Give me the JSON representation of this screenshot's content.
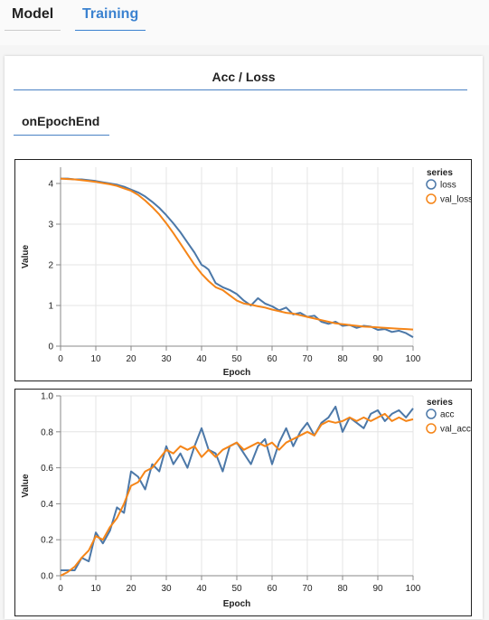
{
  "tabs": [
    {
      "label": "Model",
      "active": false
    },
    {
      "label": "Training",
      "active": true
    }
  ],
  "section": {
    "title": "Acc / Loss",
    "subsection": "onEpochEnd"
  },
  "colors": {
    "series_a": "#4c78a8",
    "series_b": "#f58518",
    "accent": "#4a82c4"
  },
  "chart_data": [
    {
      "type": "line",
      "xlabel": "Epoch",
      "ylabel": "Value",
      "xlim": [
        0,
        100
      ],
      "ylim": [
        0,
        4.4
      ],
      "xticks": [
        0,
        10,
        20,
        30,
        40,
        50,
        60,
        70,
        80,
        90,
        100
      ],
      "yticks": [
        0,
        1,
        2,
        3,
        4
      ],
      "grid": true,
      "legend_title": "series",
      "legend_position": "right",
      "series": [
        {
          "name": "loss",
          "x": [
            0,
            2,
            4,
            6,
            8,
            10,
            12,
            14,
            16,
            18,
            20,
            22,
            24,
            26,
            28,
            30,
            32,
            34,
            36,
            38,
            40,
            41,
            42,
            44,
            46,
            48,
            50,
            52,
            54,
            56,
            58,
            60,
            62,
            64,
            66,
            68,
            70,
            72,
            74,
            76,
            78,
            80,
            82,
            84,
            86,
            88,
            90,
            92,
            94,
            96,
            98,
            100
          ],
          "values": [
            4.12,
            4.12,
            4.1,
            4.1,
            4.08,
            4.06,
            4.03,
            4.0,
            3.97,
            3.92,
            3.85,
            3.78,
            3.68,
            3.55,
            3.4,
            3.22,
            3.02,
            2.8,
            2.55,
            2.3,
            2.0,
            1.95,
            1.88,
            1.55,
            1.45,
            1.38,
            1.28,
            1.12,
            1.0,
            1.18,
            1.05,
            0.98,
            0.88,
            0.95,
            0.78,
            0.82,
            0.72,
            0.75,
            0.6,
            0.55,
            0.6,
            0.5,
            0.52,
            0.45,
            0.5,
            0.48,
            0.4,
            0.42,
            0.35,
            0.38,
            0.32,
            0.22
          ]
        },
        {
          "name": "val_loss",
          "x": [
            0,
            2,
            4,
            6,
            8,
            10,
            12,
            14,
            16,
            18,
            20,
            22,
            24,
            26,
            28,
            30,
            32,
            34,
            36,
            38,
            40,
            42,
            44,
            46,
            48,
            50,
            52,
            54,
            56,
            58,
            60,
            62,
            64,
            66,
            68,
            70,
            72,
            74,
            76,
            78,
            80,
            82,
            84,
            86,
            88,
            90,
            92,
            94,
            96,
            98,
            100
          ],
          "values": [
            4.12,
            4.11,
            4.1,
            4.08,
            4.06,
            4.04,
            4.01,
            3.98,
            3.94,
            3.88,
            3.82,
            3.72,
            3.58,
            3.42,
            3.24,
            3.02,
            2.78,
            2.52,
            2.26,
            2.0,
            1.78,
            1.6,
            1.45,
            1.38,
            1.25,
            1.12,
            1.05,
            1.02,
            0.98,
            0.95,
            0.9,
            0.86,
            0.82,
            0.8,
            0.76,
            0.72,
            0.68,
            0.64,
            0.6,
            0.56,
            0.54,
            0.52,
            0.5,
            0.48,
            0.47,
            0.46,
            0.45,
            0.44,
            0.43,
            0.42,
            0.41
          ]
        }
      ]
    },
    {
      "type": "line",
      "xlabel": "Epoch",
      "ylabel": "Value",
      "xlim": [
        0,
        100
      ],
      "ylim": [
        0,
        1
      ],
      "xticks": [
        0,
        10,
        20,
        30,
        40,
        50,
        60,
        70,
        80,
        90,
        100
      ],
      "yticks": [
        0.0,
        0.2,
        0.4,
        0.6,
        0.8,
        1.0
      ],
      "grid": true,
      "legend_title": "series",
      "legend_position": "right",
      "series": [
        {
          "name": "acc",
          "x": [
            0,
            2,
            4,
            6,
            8,
            10,
            12,
            14,
            16,
            18,
            20,
            22,
            24,
            26,
            28,
            30,
            32,
            34,
            36,
            38,
            40,
            42,
            44,
            46,
            48,
            50,
            52,
            54,
            56,
            58,
            60,
            62,
            64,
            66,
            68,
            70,
            72,
            74,
            76,
            78,
            80,
            82,
            84,
            86,
            88,
            90,
            92,
            94,
            96,
            98,
            100
          ],
          "values": [
            0.03,
            0.03,
            0.03,
            0.1,
            0.08,
            0.24,
            0.18,
            0.25,
            0.38,
            0.35,
            0.58,
            0.55,
            0.48,
            0.62,
            0.58,
            0.72,
            0.62,
            0.68,
            0.6,
            0.72,
            0.82,
            0.7,
            0.68,
            0.58,
            0.72,
            0.74,
            0.68,
            0.62,
            0.72,
            0.76,
            0.62,
            0.74,
            0.82,
            0.72,
            0.8,
            0.85,
            0.78,
            0.85,
            0.88,
            0.94,
            0.8,
            0.88,
            0.85,
            0.82,
            0.9,
            0.92,
            0.86,
            0.9,
            0.92,
            0.88,
            0.93
          ]
        },
        {
          "name": "val_acc",
          "x": [
            0,
            2,
            4,
            6,
            8,
            10,
            12,
            14,
            16,
            18,
            20,
            22,
            24,
            26,
            28,
            30,
            32,
            34,
            36,
            38,
            40,
            42,
            44,
            46,
            48,
            50,
            52,
            54,
            56,
            58,
            60,
            62,
            64,
            66,
            68,
            70,
            72,
            74,
            76,
            78,
            80,
            82,
            84,
            86,
            88,
            90,
            92,
            94,
            96,
            98,
            100
          ],
          "values": [
            0.0,
            0.02,
            0.05,
            0.1,
            0.14,
            0.22,
            0.2,
            0.27,
            0.32,
            0.4,
            0.5,
            0.52,
            0.58,
            0.6,
            0.65,
            0.7,
            0.68,
            0.72,
            0.7,
            0.72,
            0.66,
            0.7,
            0.66,
            0.7,
            0.72,
            0.74,
            0.7,
            0.72,
            0.74,
            0.72,
            0.74,
            0.7,
            0.74,
            0.76,
            0.78,
            0.8,
            0.78,
            0.84,
            0.86,
            0.85,
            0.86,
            0.88,
            0.86,
            0.88,
            0.86,
            0.88,
            0.9,
            0.86,
            0.88,
            0.86,
            0.87
          ]
        }
      ]
    }
  ]
}
